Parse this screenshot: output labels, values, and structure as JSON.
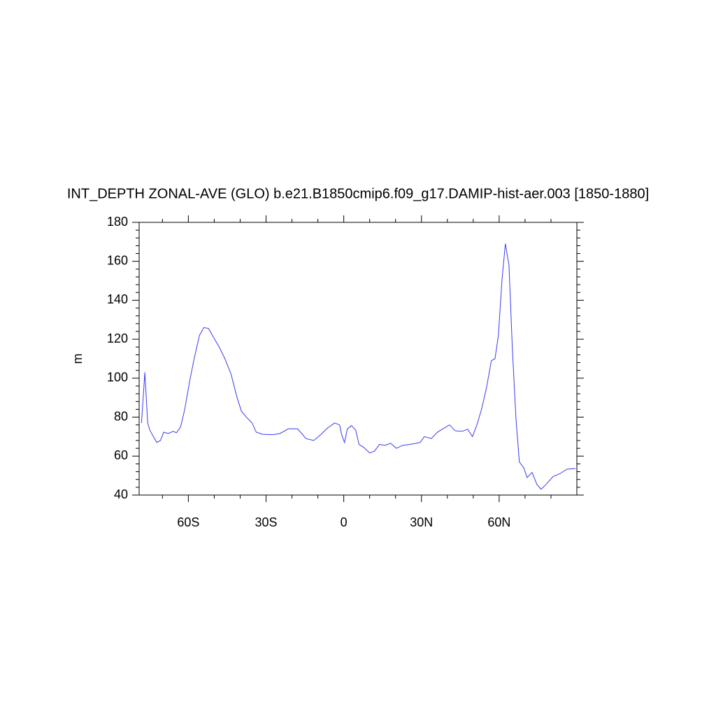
{
  "chart_data": {
    "type": "line",
    "title": "INT_DEPTH ZONAL-AVE (GLO) b.e21.B1850cmip6.f09_g17.DAMIP-hist-aer.003 [1850-1880]",
    "ylabel": "m",
    "x": [
      -78.1,
      -76.8,
      -75.7,
      -74.9,
      -73.5,
      -72.2,
      -70.8,
      -69.5,
      -67.8,
      -65.9,
      -64.6,
      -63,
      -61.4,
      -59.5,
      -57.6,
      -55.7,
      -54,
      -52.2,
      -50.3,
      -48.1,
      -45.9,
      -43.5,
      -41.4,
      -39.5,
      -37.6,
      -35.4,
      -33.8,
      -31.4,
      -27.3,
      -24.6,
      -21.4,
      -17.8,
      -14.6,
      -11.6,
      -8.9,
      -6.2,
      -3.5,
      -1.6,
      -0.8,
      0.3,
      1.4,
      3,
      4.6,
      5.9,
      7.8,
      10,
      11.9,
      13.8,
      15.9,
      18.1,
      20.3,
      22.7,
      25.4,
      28.1,
      29.5,
      31.1,
      33.8,
      36.2,
      38.9,
      40.8,
      43,
      45.7,
      47.8,
      49.7,
      51.4,
      53.2,
      55.1,
      57,
      58.4,
      59.7,
      61.1,
      62.4,
      63.8,
      65.1,
      66.5,
      67.8,
      69.5,
      70.8,
      72.7,
      74.6,
      76.2,
      78.1,
      80.8,
      83.5,
      86.2,
      89.5
    ],
    "series": [
      {
        "name": "INT_DEPTH",
        "color": "#3a3af0",
        "values": [
          77,
          103,
          77,
          73.4,
          70,
          67,
          68,
          72.3,
          71.6,
          72.7,
          72,
          75,
          84,
          98.5,
          111,
          122,
          126,
          125.5,
          121,
          116,
          110,
          102,
          91,
          83,
          80,
          77,
          72.3,
          71.2,
          71,
          71.6,
          74,
          74,
          69,
          68,
          71,
          74.5,
          77,
          76,
          71,
          67,
          74,
          75.6,
          73.4,
          66,
          64.4,
          61.6,
          62.6,
          66,
          65.5,
          66.6,
          64,
          65.5,
          66,
          66.6,
          67,
          70,
          69,
          72.3,
          74.5,
          76,
          73,
          72.7,
          73.8,
          70,
          76,
          84,
          95,
          109,
          110,
          122,
          150.6,
          169,
          158,
          115,
          79,
          57,
          54,
          49,
          51.6,
          45.4,
          43,
          45.4,
          49.5,
          51,
          53.3,
          53.6
        ]
      }
    ],
    "xlim": [
      -79,
      90
    ],
    "xticks": [
      {
        "value": -60,
        "label": "60S"
      },
      {
        "value": -30,
        "label": "30S"
      },
      0,
      {
        "value": 30,
        "label": "30N"
      },
      {
        "value": 60,
        "label": "60N"
      }
    ],
    "xminorticks": [
      -70,
      -50,
      -40,
      -20,
      -10,
      10,
      20,
      40,
      50,
      70,
      80
    ],
    "ylim": [
      40,
      180
    ],
    "yticks": [
      40,
      60,
      80,
      100,
      120,
      140,
      160,
      180
    ],
    "yminorticks": [
      44,
      48,
      52,
      56,
      64,
      68,
      72,
      76,
      84,
      88,
      92,
      96,
      104,
      108,
      112,
      116,
      124,
      128,
      132,
      136,
      144,
      148,
      152,
      156,
      164,
      168,
      172,
      176
    ],
    "grid": false
  }
}
